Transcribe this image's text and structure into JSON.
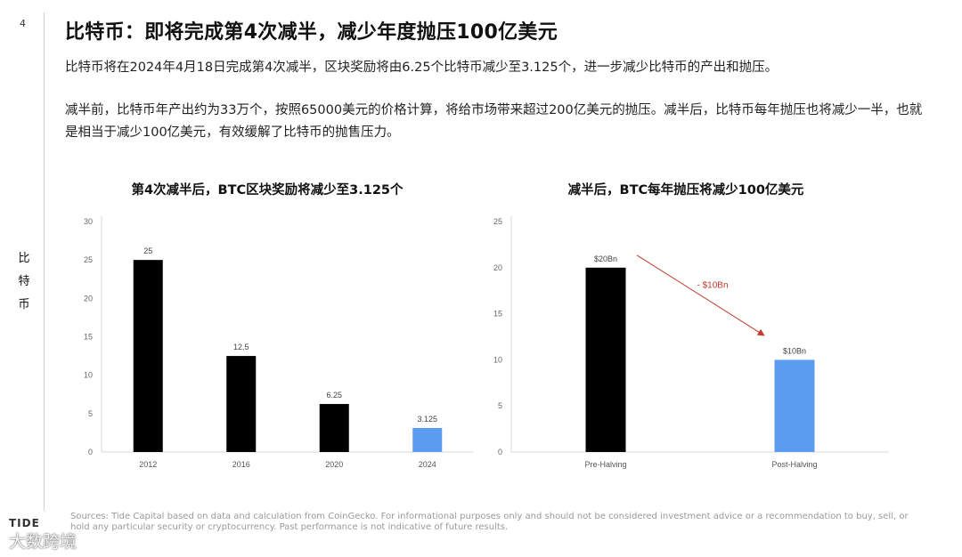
{
  "page": {
    "number": "4",
    "side_label": [
      "比",
      "特",
      "币"
    ],
    "title": "比特币：即将完成第4次减半，减少年度抛压100亿美元",
    "paragraphs": [
      "比特币将在2024年4月18日完成第4次减半，区块奖励将由6.25个比特币减少至3.125个，进一步减少比特币的产出和抛压。",
      "减半前，比特币年产出约为33万个，按照65000美元的价格计算，将给市场带来超过200亿美元的抛压。减半后，比特币每年抛压也将减少一半，也就是相当于减少100亿美元，有效缓解了比特币的抛售压力。"
    ],
    "footer_logo": "TIDE",
    "source": "Sources: Tide Capital based on data and calculation from CoinGecko. For informational purposes only and should not be considered investment advice or a recommendation to buy, sell, or hold any particular security or cryptocurrency. Past performance is not indicative of future results.",
    "watermark": "大数跨境"
  },
  "chart_data": [
    {
      "type": "bar",
      "title": "第4次减半后，BTC区块奖励将减少至3.125个",
      "categories": [
        "2012",
        "2016",
        "2020",
        "2024"
      ],
      "values": [
        25,
        12.5,
        6.25,
        3.125
      ],
      "data_labels": [
        "25",
        "12.5",
        "6.25",
        "3.125"
      ],
      "bar_colors": [
        "#000000",
        "#000000",
        "#000000",
        "#5b9bf0"
      ],
      "ylim": [
        0,
        30
      ],
      "yticks": [
        0,
        5,
        10,
        15,
        20,
        25,
        30
      ],
      "grid": false,
      "xlabel": "",
      "ylabel": ""
    },
    {
      "type": "bar",
      "title": "减半后，BTC每年抛压将减少100亿美元",
      "categories": [
        "Pre-Halving",
        "Post-Halving"
      ],
      "values": [
        20,
        10
      ],
      "data_labels": [
        "$20Bn",
        "$10Bn"
      ],
      "bar_colors": [
        "#000000",
        "#5b9bf0"
      ],
      "ylim": [
        0,
        25
      ],
      "yticks": [
        0,
        5,
        10,
        15,
        20,
        25
      ],
      "grid": false,
      "annotation": {
        "text": "- $10Bn",
        "color": "#c0392b"
      },
      "xlabel": "",
      "ylabel": ""
    }
  ]
}
